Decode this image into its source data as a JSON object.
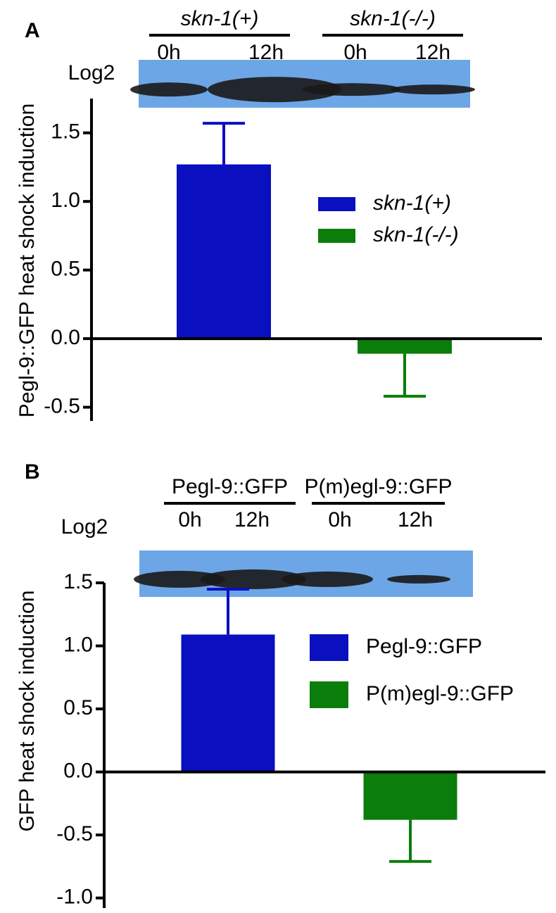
{
  "chart_data": [
    {
      "type": "bar",
      "panel_label": "A",
      "blot_label": "Log2",
      "blot": [
        {
          "label": "skn-1(+)",
          "lanes": [
            "0h",
            "12h"
          ]
        },
        {
          "label": "skn-1(-/-)",
          "lanes": [
            "0h",
            "12h"
          ]
        }
      ],
      "y_label": "Pegl-9::GFP heat shock induction",
      "categories": [
        null,
        null
      ],
      "series": [
        {
          "name": "skn-1(+)",
          "color": "#0a0fbf",
          "values": [
            1.27,
            null
          ],
          "errors": [
            0.3,
            null
          ]
        },
        {
          "name": "skn-1(-/-)",
          "color": "#0a7d0a",
          "values": [
            null,
            -0.11
          ],
          "errors": [
            null,
            0.31
          ]
        }
      ],
      "ylim": [
        -0.6,
        1.75
      ],
      "yticks": [
        -0.5,
        {
          "value": 0,
          "label": "0.0"
        },
        0.5,
        {
          "value": 1,
          "label": "1.0"
        },
        1.5
      ]
    },
    {
      "type": "bar",
      "panel_label": "B",
      "blot_label": "Log2",
      "blot": [
        {
          "label": "Pegl-9::GFP",
          "lanes": [
            "0h",
            "12h"
          ]
        },
        {
          "label": "P(m)egl-9::GFP",
          "lanes": [
            "0h",
            "12h"
          ]
        }
      ],
      "y_label": "GFP heat shock induction",
      "categories": [
        null,
        null
      ],
      "series": [
        {
          "name": "Pegl-9::GFP",
          "color": "#0a0fbf",
          "values": [
            1.09,
            null
          ],
          "errors": [
            0.36,
            null
          ]
        },
        {
          "name": "P(m)egl-9::GFP",
          "color": "#0a7d0a",
          "values": [
            null,
            -0.38
          ],
          "errors": [
            null,
            0.33
          ]
        }
      ],
      "ylim": [
        -1.08,
        1.5
      ],
      "yticks": [
        {
          "value": -1,
          "label": "-1.0"
        },
        -0.5,
        {
          "value": 0,
          "label": "0.0"
        },
        0.5,
        {
          "value": 1,
          "label": "1.0"
        },
        1.5
      ]
    }
  ]
}
